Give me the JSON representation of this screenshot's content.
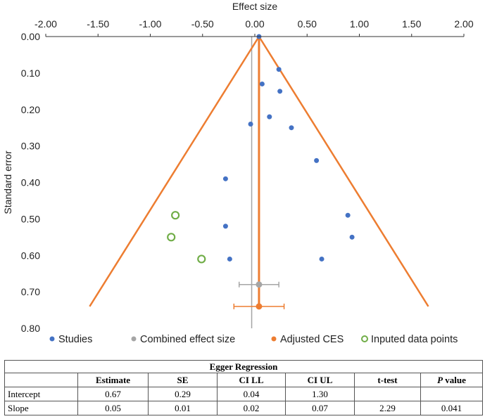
{
  "chart_data": {
    "type": "scatter",
    "title": "",
    "xlabel": "Effect size",
    "ylabel": "Standard error",
    "xlim": [
      -2.0,
      2.0
    ],
    "ylim": [
      0.0,
      0.8
    ],
    "y_inverted": true,
    "x_ticks": [
      "-2.00",
      "-1.50",
      "-1.00",
      "-0.50",
      "0.00",
      "0.50",
      "1.00",
      "1.50",
      "2.00"
    ],
    "y_ticks": [
      "0.00",
      "0.10",
      "0.20",
      "0.30",
      "0.40",
      "0.50",
      "0.60",
      "0.70",
      "0.80"
    ],
    "series": [
      {
        "name": "Studies",
        "color": "#4472C4",
        "marker": "filled-circle",
        "points": [
          {
            "x": 0.04,
            "y": 0.0
          },
          {
            "x": 0.23,
            "y": 0.09
          },
          {
            "x": 0.07,
            "y": 0.13
          },
          {
            "x": 0.24,
            "y": 0.15
          },
          {
            "x": 0.14,
            "y": 0.22
          },
          {
            "x": -0.04,
            "y": 0.24
          },
          {
            "x": 0.35,
            "y": 0.25
          },
          {
            "x": 0.59,
            "y": 0.34
          },
          {
            "x": -0.28,
            "y": 0.39
          },
          {
            "x": 0.89,
            "y": 0.49
          },
          {
            "x": -0.28,
            "y": 0.52
          },
          {
            "x": 0.93,
            "y": 0.55
          },
          {
            "x": -0.24,
            "y": 0.61
          },
          {
            "x": 0.64,
            "y": 0.61
          }
        ]
      },
      {
        "name": "Combined effect size",
        "color": "#A5A5A5",
        "marker": "filled-circle",
        "points": [
          {
            "x": 0.04,
            "y": 0.68
          }
        ],
        "ci": [
          -0.15,
          0.23
        ]
      },
      {
        "name": "Adjusted CES",
        "color": "#ED7D31",
        "marker": "filled-circle",
        "points": [
          {
            "x": 0.04,
            "y": 0.74
          }
        ],
        "ci": [
          -0.2,
          0.28
        ]
      },
      {
        "name": "Inputed data points",
        "color": "#70AD47",
        "marker": "open-circle",
        "points": [
          {
            "x": -0.76,
            "y": 0.49
          },
          {
            "x": -0.8,
            "y": 0.55
          },
          {
            "x": -0.51,
            "y": 0.61
          }
        ]
      }
    ],
    "funnel": {
      "color": "#ED7D31",
      "apex": {
        "x": 0.04,
        "y": 0.0
      },
      "left_end": {
        "x": -1.58,
        "y": 0.74
      },
      "right_end": {
        "x": 1.66,
        "y": 0.74
      },
      "center_line": {
        "x": 0.04,
        "y_start": 0.0,
        "y_end": 0.74
      }
    },
    "reference_line": {
      "x": -0.03,
      "color": "#A5A5A5"
    },
    "legend_position": "bottom"
  },
  "table": {
    "title": "Egger Regression",
    "headers": [
      "",
      "Estimate",
      "SE",
      "CI LL",
      "CI UL",
      "t-test",
      "P value"
    ],
    "header_italic_bold": "P",
    "header_value_suffix": " value",
    "rows": [
      [
        "Intercept",
        "0.67",
        "0.29",
        "0.04",
        "1.30",
        "",
        ""
      ],
      [
        "Slope",
        "0.05",
        "0.01",
        "0.02",
        "0.07",
        "2.29",
        "0.041"
      ]
    ]
  }
}
